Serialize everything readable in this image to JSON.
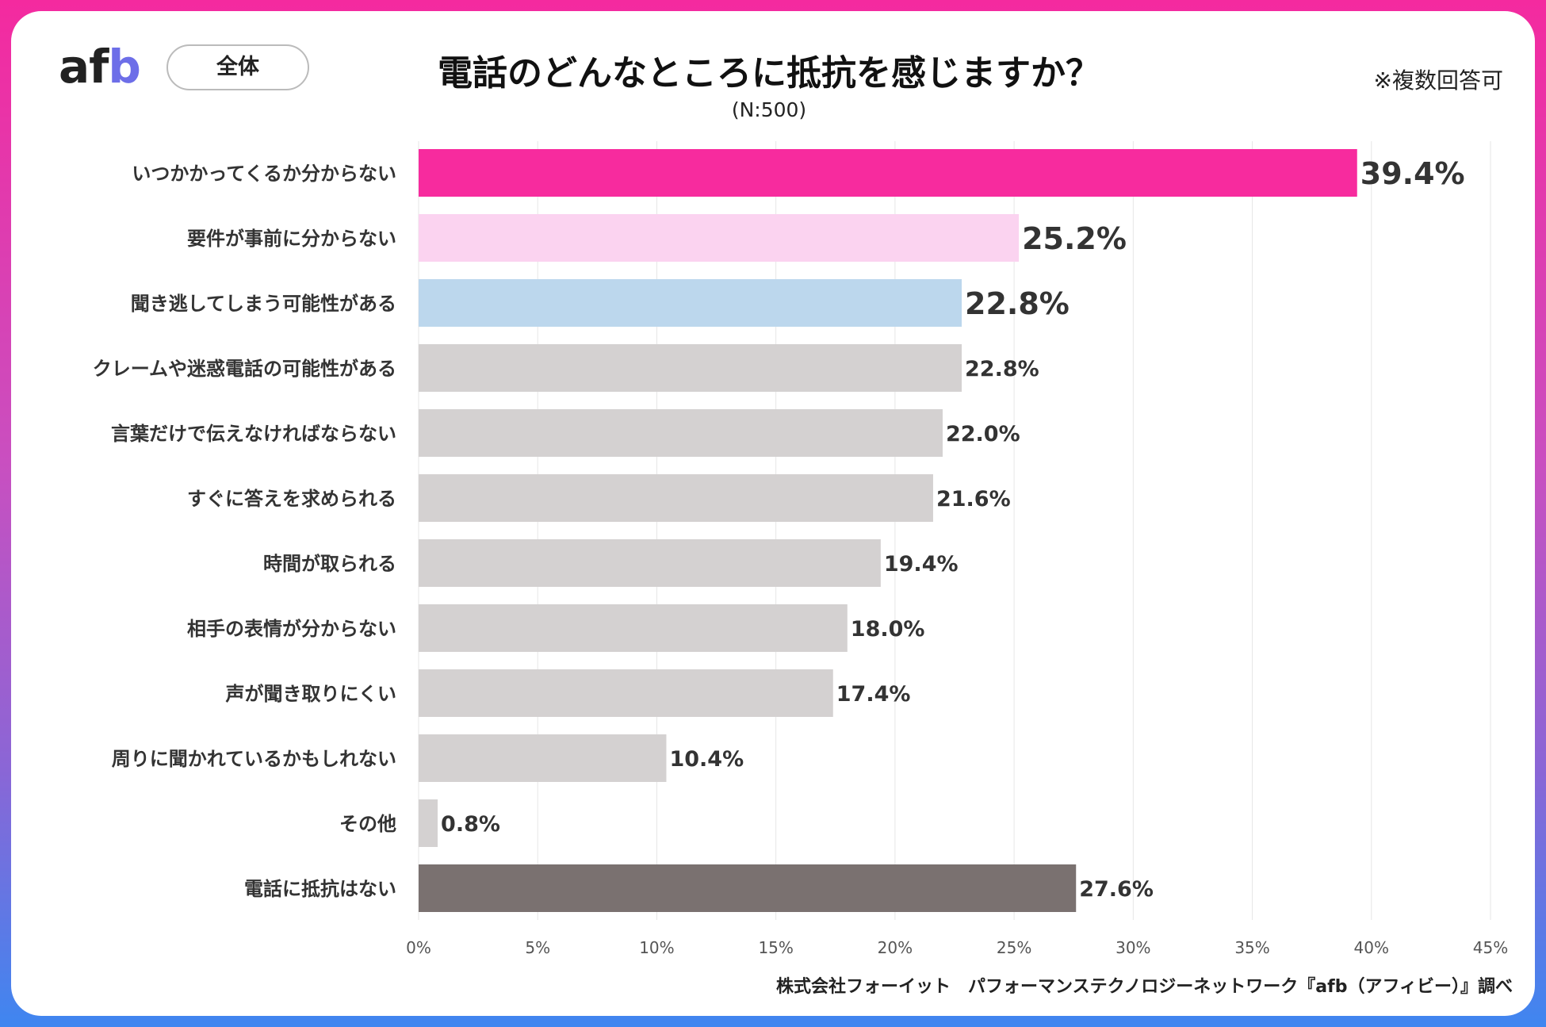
{
  "brand": {
    "logo_main": "af",
    "logo_accent": "b"
  },
  "segment_label": "全体",
  "note": "※複数回答可",
  "footer": "株式会社フォーイット　パフォーマンステクノロジーネットワーク『afb（アフィビー）』調べ",
  "colors": {
    "highlight": "#f72b9e",
    "second": "#fbd3f0",
    "third": "#bcd7ed",
    "default": "#d4d1d1",
    "none": "#7a7170",
    "value_highlight": "#f72b9e",
    "value_default": "#333333"
  },
  "chart_data": {
    "type": "bar",
    "orientation": "horizontal",
    "title": "電話のどんなところに抵抗を感じますか？",
    "subtitle": "(N:500)",
    "categories": [
      "いつかかってくるか分からない",
      "要件が事前に分からない",
      "聞き逃してしまう可能性がある",
      "クレームや迷惑電話の可能性がある",
      "言葉だけで伝えなければならない",
      "すぐに答えを求められる",
      "時間が取られる",
      "相手の表情が分からない",
      "声が聞き取りにくい",
      "周りに聞かれているかもしれない",
      "その他",
      "電話に抵抗はない"
    ],
    "values": [
      39.4,
      25.2,
      22.8,
      22.8,
      22.0,
      21.6,
      19.4,
      18.0,
      17.4,
      10.4,
      0.8,
      27.6
    ],
    "value_labels": [
      "39.4%",
      "25.2%",
      "22.8%",
      "22.8%",
      "22.0%",
      "21.6%",
      "19.4%",
      "18.0%",
      "17.4%",
      "10.4%",
      "0.8%",
      "27.6%"
    ],
    "bar_color_keys": [
      "highlight",
      "second",
      "third",
      "default",
      "default",
      "default",
      "default",
      "default",
      "default",
      "default",
      "default",
      "none"
    ],
    "xlim": [
      0,
      45
    ],
    "xticks": [
      0,
      5,
      10,
      15,
      20,
      25,
      30,
      35,
      40,
      45
    ],
    "xtick_labels": [
      "0%",
      "5%",
      "10%",
      "15%",
      "20%",
      "25%",
      "30%",
      "35%",
      "40%",
      "45%"
    ],
    "grid": true,
    "xlabel": "",
    "ylabel": ""
  }
}
